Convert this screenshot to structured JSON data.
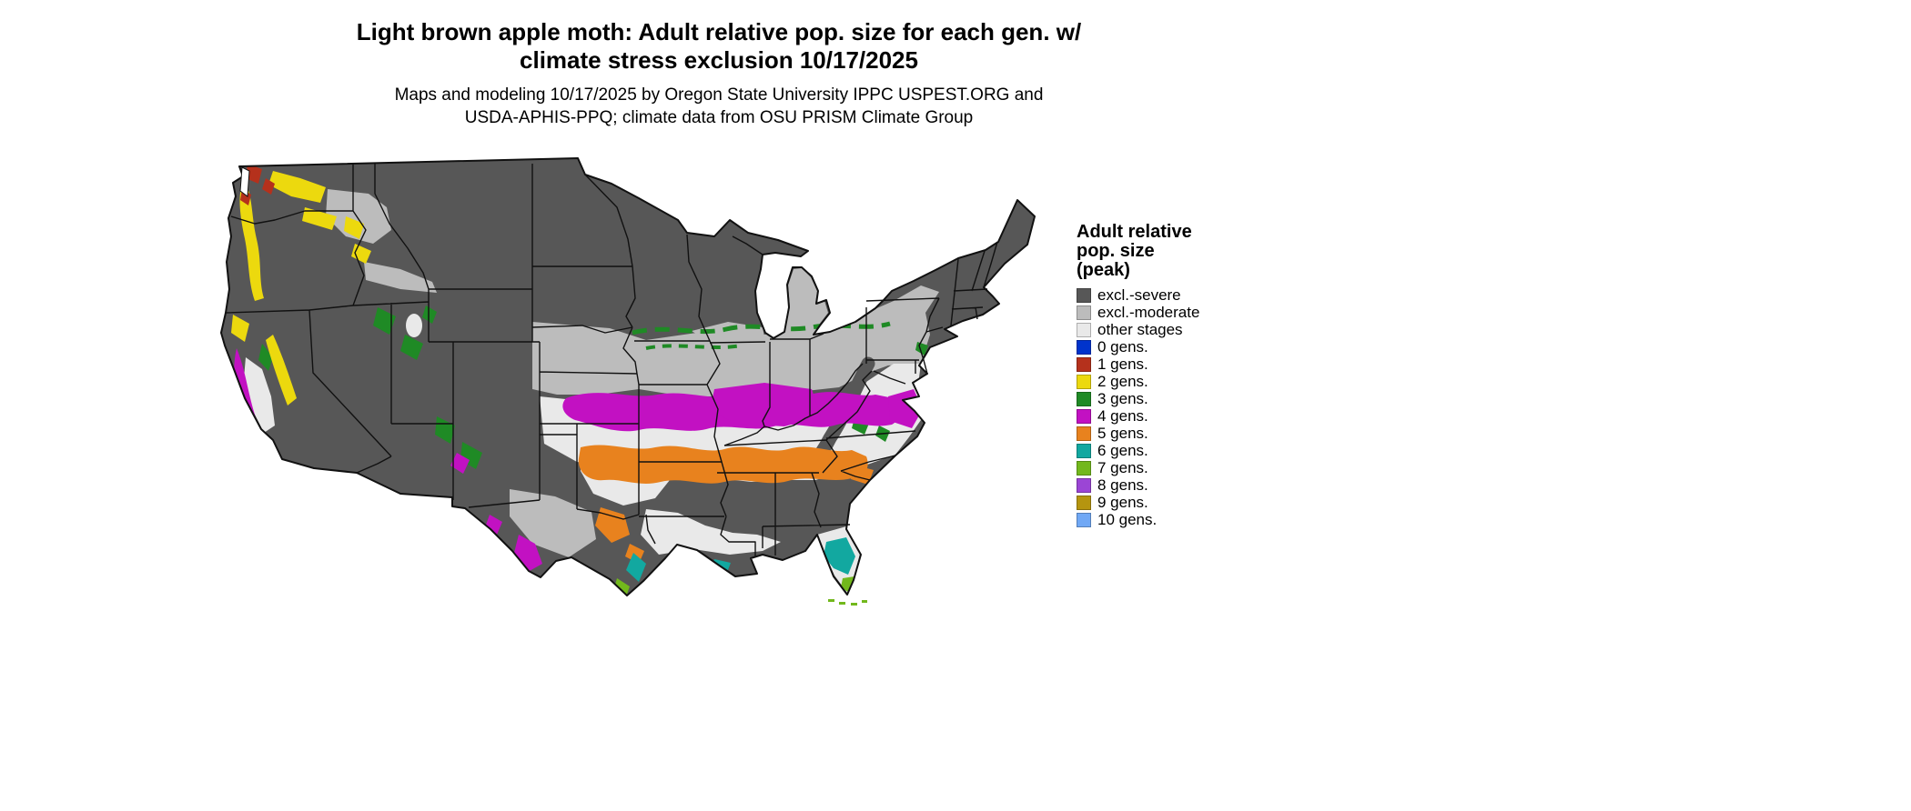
{
  "title": {
    "line1": "Light brown apple moth: Adult relative pop. size for each gen. w/",
    "line2": "climate stress exclusion 10/17/2025"
  },
  "subtitle": {
    "line1": "Maps and modeling 10/17/2025 by Oregon State University IPPC USPEST.ORG and",
    "line2": "USDA-APHIS-PPQ; climate data from OSU PRISM Climate Group"
  },
  "map": {
    "region": "Contiguous United States",
    "kind": "choropleth of adult relative population size classes"
  },
  "legend": {
    "title_lines": [
      "Adult relative",
      "pop. size",
      "(peak)"
    ],
    "items": [
      {
        "label": "excl.-severe",
        "color": "#575757"
      },
      {
        "label": "excl.-moderate",
        "color": "#bcbcbc"
      },
      {
        "label": "other stages",
        "color": "#e9e9e9"
      },
      {
        "label": "0 gens.",
        "color": "#0033cc"
      },
      {
        "label": "1 gens.",
        "color": "#b5311c"
      },
      {
        "label": "2 gens.",
        "color": "#ecd90e"
      },
      {
        "label": "3 gens.",
        "color": "#1f8a25"
      },
      {
        "label": "4 gens.",
        "color": "#c211c2"
      },
      {
        "label": "5 gens.",
        "color": "#e8821e"
      },
      {
        "label": "6 gens.",
        "color": "#12a8a0"
      },
      {
        "label": "7 gens.",
        "color": "#72b81c"
      },
      {
        "label": "8 gens.",
        "color": "#9b45d5"
      },
      {
        "label": "9 gens.",
        "color": "#b5950f"
      },
      {
        "label": "10 gens.",
        "color": "#70a8f5"
      }
    ]
  }
}
